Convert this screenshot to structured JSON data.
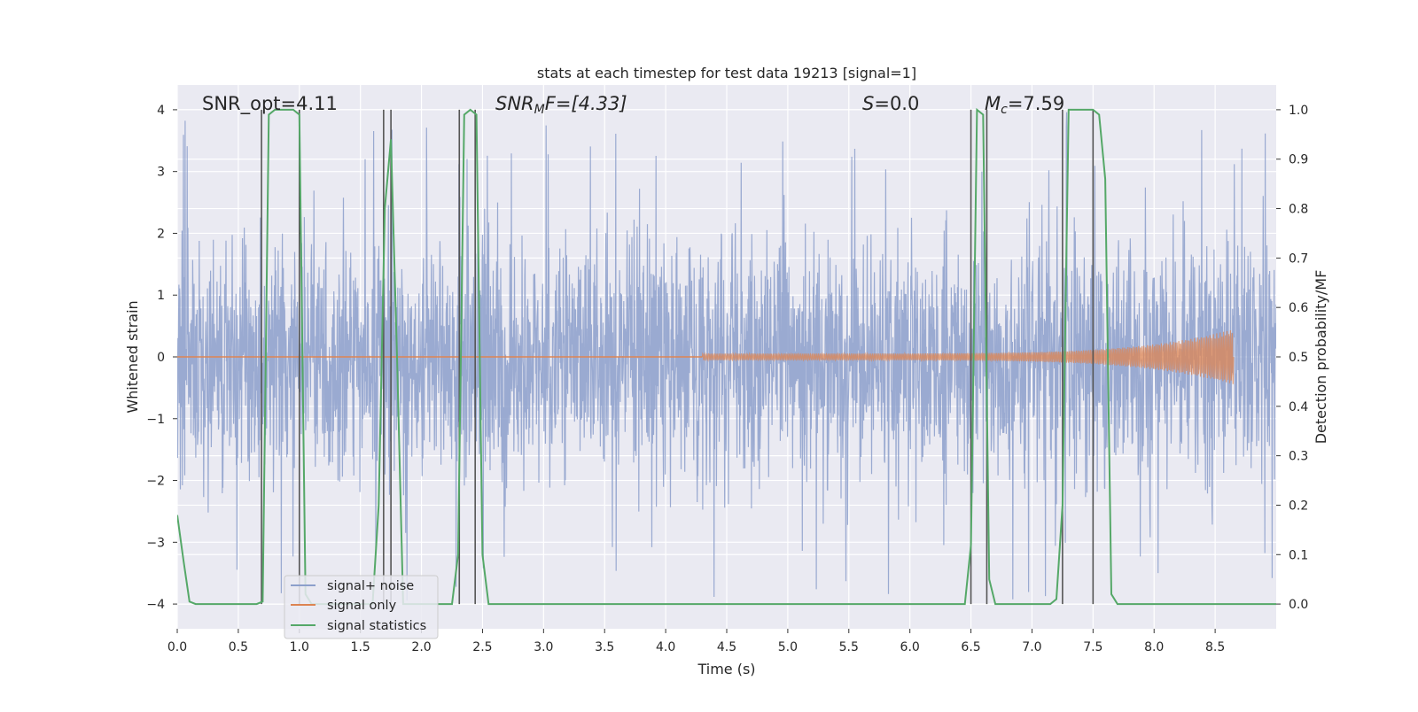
{
  "chart_data": {
    "type": "line",
    "title": "stats at each timestep for test data 19213 [signal=1]",
    "xlabel": "Time (s)",
    "ylabel": "Whitened strain",
    "ylabel_right": "Detection probability/MF",
    "xlim": [
      0.0,
      9.0
    ],
    "ylim": [
      -4.4,
      4.4
    ],
    "ylim_right": [
      -0.05,
      1.05
    ],
    "xticks": [
      "0.0",
      "0.5",
      "1.0",
      "1.5",
      "2.0",
      "2.5",
      "3.0",
      "3.5",
      "4.0",
      "4.5",
      "5.0",
      "5.5",
      "6.0",
      "6.5",
      "7.0",
      "7.5",
      "8.0",
      "8.5"
    ],
    "xtick_values": [
      0.0,
      0.5,
      1.0,
      1.5,
      2.0,
      2.5,
      3.0,
      3.5,
      4.0,
      4.5,
      5.0,
      5.5,
      6.0,
      6.5,
      7.0,
      7.5,
      8.0,
      8.5
    ],
    "yticks": [
      "−4",
      "−3",
      "−2",
      "−1",
      "0",
      "1",
      "2",
      "3",
      "4"
    ],
    "ytick_values": [
      -4,
      -3,
      -2,
      -1,
      0,
      1,
      2,
      3,
      4
    ],
    "yticks_right": [
      "0.0",
      "0.1",
      "0.2",
      "0.3",
      "0.4",
      "0.5",
      "0.6",
      "0.7",
      "0.8",
      "0.9",
      "1.0"
    ],
    "ytick_values_right": [
      0.0,
      0.1,
      0.2,
      0.3,
      0.4,
      0.5,
      0.6,
      0.7,
      0.8,
      0.9,
      1.0
    ],
    "grid": true,
    "legend_placement": "lower-left",
    "annotations": {
      "snr_opt": "SNR_opt=4.11",
      "snr_mf_prefix": "SNR",
      "snr_mf_sub": "M",
      "snr_mf_rest": "F=[4.33]",
      "s_prefix": "S",
      "s_rest": "=0.0",
      "mc_prefix": "M",
      "mc_sub": "c",
      "mc_rest": "=7.59"
    },
    "series": [
      {
        "name": "signal+ noise",
        "color": "#8c9fcb",
        "style": "noise",
        "x_range": [
          0.0,
          9.0
        ],
        "amplitude_range": [
          -4.0,
          4.0
        ]
      },
      {
        "name": "signal only",
        "color": "#dd8452",
        "style": "chirp",
        "x_start": 4.3,
        "x_end": 8.65,
        "peak_amplitude": 0.45
      },
      {
        "name": "signal statistics",
        "color": "#55a868",
        "axis": "right",
        "x": [
          0.0,
          0.05,
          0.1,
          0.15,
          0.2,
          0.65,
          0.7,
          0.75,
          0.8,
          0.95,
          1.0,
          1.05,
          1.1,
          1.6,
          1.65,
          1.7,
          1.75,
          1.8,
          1.85,
          2.25,
          2.3,
          2.35,
          2.4,
          2.45,
          2.5,
          2.55,
          2.6,
          6.45,
          6.5,
          6.55,
          6.6,
          6.65,
          6.7,
          7.15,
          7.2,
          7.25,
          7.3,
          7.35,
          7.45,
          7.5,
          7.55,
          7.6,
          7.65,
          7.7,
          9.0
        ],
        "y": [
          0.18,
          0.09,
          0.005,
          0.0,
          0.0,
          0.0,
          0.005,
          0.99,
          1.0,
          1.0,
          0.99,
          0.02,
          0.0,
          0.0,
          0.2,
          0.8,
          0.94,
          0.5,
          0.0,
          0.0,
          0.1,
          0.99,
          1.0,
          0.99,
          0.1,
          0.0,
          0.0,
          0.0,
          0.12,
          1.0,
          0.99,
          0.05,
          0.0,
          0.0,
          0.01,
          0.2,
          1.0,
          1.0,
          1.0,
          1.0,
          0.99,
          0.86,
          0.02,
          0.0,
          0.0
        ]
      }
    ],
    "vertical_lines": [
      {
        "color": "#555555",
        "x": [
          0.69,
          1.0,
          1.69,
          1.75,
          2.31,
          2.44,
          6.5,
          6.63,
          7.25,
          7.5
        ]
      }
    ]
  }
}
